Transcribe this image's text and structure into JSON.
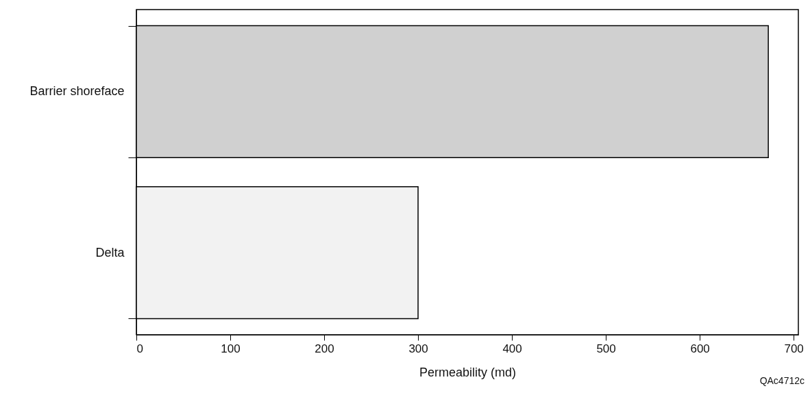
{
  "chart_data": {
    "type": "bar",
    "orientation": "horizontal",
    "categories": [
      "Barrier shoreface",
      "Delta"
    ],
    "values": [
      673,
      300
    ],
    "colors": [
      "#d0d0d0",
      "#f2f2f2"
    ],
    "xlabel": "Permeability (md)",
    "xlim": [
      0,
      705
    ],
    "xticks": [
      0,
      100,
      200,
      300,
      400,
      500,
      600,
      700
    ],
    "grid": false,
    "annotations": [
      "QAc4712c"
    ]
  }
}
